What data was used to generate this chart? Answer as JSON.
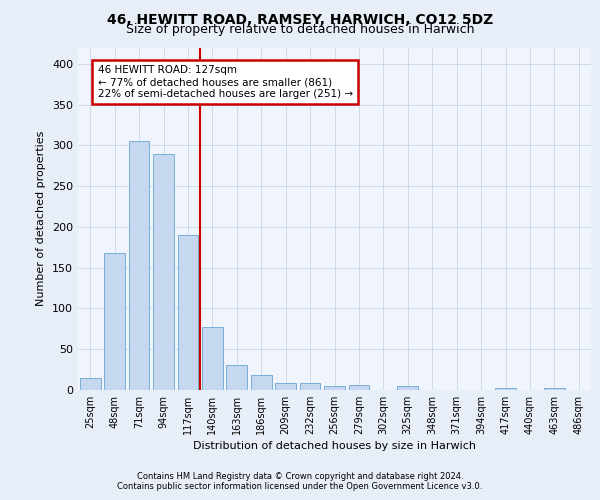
{
  "title_line1": "46, HEWITT ROAD, RAMSEY, HARWICH, CO12 5DZ",
  "title_line2": "Size of property relative to detached houses in Harwich",
  "xlabel": "Distribution of detached houses by size in Harwich",
  "ylabel": "Number of detached properties",
  "footer_line1": "Contains HM Land Registry data © Crown copyright and database right 2024.",
  "footer_line2": "Contains public sector information licensed under the Open Government Licence v3.0.",
  "annotation_line1": "46 HEWITT ROAD: 127sqm",
  "annotation_line2": "← 77% of detached houses are smaller (861)",
  "annotation_line3": "22% of semi-detached houses are larger (251) →",
  "bar_categories": [
    "25sqm",
    "48sqm",
    "71sqm",
    "94sqm",
    "117sqm",
    "140sqm",
    "163sqm",
    "186sqm",
    "209sqm",
    "232sqm",
    "256sqm",
    "279sqm",
    "302sqm",
    "325sqm",
    "348sqm",
    "371sqm",
    "394sqm",
    "417sqm",
    "440sqm",
    "463sqm",
    "486sqm"
  ],
  "bar_values": [
    15,
    168,
    305,
    290,
    190,
    77,
    31,
    18,
    9,
    8,
    5,
    6,
    0,
    5,
    0,
    0,
    0,
    3,
    0,
    3,
    0
  ],
  "bar_color": "#c5d8ef",
  "bar_edge_color": "#7aaed4",
  "vline_color": "#cc0000",
  "ylim": [
    0,
    420
  ],
  "yticks": [
    0,
    50,
    100,
    150,
    200,
    250,
    300,
    350,
    400
  ],
  "bg_color": "#e8eef8",
  "plot_bg_color": "#f0f4fc",
  "grid_color": "#c8d4e8",
  "annotation_box_color": "#cc0000",
  "title_fontsize": 10,
  "subtitle_fontsize": 9,
  "ylabel_fontsize": 8,
  "xlabel_fontsize": 8,
  "tick_fontsize": 7,
  "footer_fontsize": 6,
  "annotation_fontsize": 7.5
}
